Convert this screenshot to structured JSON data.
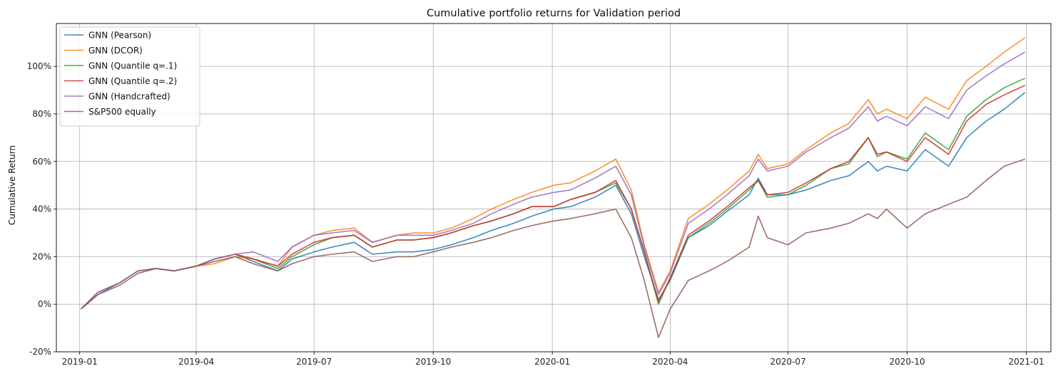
{
  "chart_data": {
    "type": "line",
    "title": "Cumulative portfolio returns for Validation period",
    "xlabel": "",
    "ylabel": "Cumulative Return",
    "x_range": [
      "2018-12-14",
      "2021-01-20"
    ],
    "ylim": [
      -0.2,
      1.18
    ],
    "x_ticks": [
      "2019-01-01",
      "2019-04-01",
      "2019-07-01",
      "2019-10-01",
      "2020-01-01",
      "2020-04-01",
      "2020-07-01",
      "2020-10-01",
      "2021-01-01"
    ],
    "x_tick_labels": [
      "2019-01",
      "2019-04",
      "2019-07",
      "2019-10",
      "2020-01",
      "2020-04",
      "2020-07",
      "2020-10",
      "2021-01"
    ],
    "y_ticks": [
      -0.2,
      0,
      0.2,
      0.4,
      0.6,
      0.8,
      1.0
    ],
    "y_tick_labels": [
      "-20%",
      "0%",
      "20%",
      "40%",
      "60%",
      "80%",
      "100%"
    ],
    "grid": true,
    "legend_position": "top-left",
    "x_dates": [
      "2019-01-02",
      "2019-01-15",
      "2019-02-01",
      "2019-02-15",
      "2019-03-01",
      "2019-03-15",
      "2019-04-01",
      "2019-04-15",
      "2019-05-01",
      "2019-05-15",
      "2019-06-03",
      "2019-06-14",
      "2019-07-01",
      "2019-07-15",
      "2019-08-01",
      "2019-08-15",
      "2019-09-03",
      "2019-09-16",
      "2019-10-01",
      "2019-10-15",
      "2019-11-01",
      "2019-11-15",
      "2019-12-02",
      "2019-12-16",
      "2020-01-02",
      "2020-01-15",
      "2020-02-03",
      "2020-02-19",
      "2020-03-02",
      "2020-03-12",
      "2020-03-23",
      "2020-04-01",
      "2020-04-15",
      "2020-05-01",
      "2020-05-15",
      "2020-06-01",
      "2020-06-08",
      "2020-06-15",
      "2020-07-01",
      "2020-07-15",
      "2020-08-03",
      "2020-08-17",
      "2020-09-01",
      "2020-09-08",
      "2020-09-15",
      "2020-10-01",
      "2020-10-15",
      "2020-11-02",
      "2020-11-16",
      "2020-12-01",
      "2020-12-15",
      "2020-12-31"
    ],
    "series": [
      {
        "name": "GNN (Pearson)",
        "color": "#1f77b4",
        "values": [
          -0.02,
          0.04,
          0.09,
          0.14,
          0.15,
          0.14,
          0.16,
          0.19,
          0.21,
          0.18,
          0.14,
          0.19,
          0.22,
          0.24,
          0.26,
          0.21,
          0.22,
          0.22,
          0.23,
          0.25,
          0.28,
          0.31,
          0.34,
          0.37,
          0.4,
          0.41,
          0.45,
          0.5,
          0.38,
          0.2,
          0.02,
          0.1,
          0.28,
          0.33,
          0.39,
          0.46,
          0.53,
          0.46,
          0.46,
          0.48,
          0.52,
          0.54,
          0.6,
          0.56,
          0.58,
          0.56,
          0.65,
          0.58,
          0.7,
          0.77,
          0.82,
          0.89
        ]
      },
      {
        "name": "GNN (DCOR)",
        "color": "#ff7f0e",
        "values": [
          -0.02,
          0.05,
          0.09,
          0.14,
          0.15,
          0.14,
          0.16,
          0.17,
          0.2,
          0.19,
          0.16,
          0.24,
          0.29,
          0.31,
          0.32,
          0.26,
          0.29,
          0.3,
          0.3,
          0.32,
          0.36,
          0.4,
          0.44,
          0.47,
          0.5,
          0.51,
          0.56,
          0.61,
          0.48,
          0.25,
          0.05,
          0.14,
          0.36,
          0.42,
          0.48,
          0.56,
          0.63,
          0.57,
          0.59,
          0.65,
          0.72,
          0.76,
          0.86,
          0.8,
          0.82,
          0.78,
          0.87,
          0.82,
          0.94,
          1.0,
          1.06,
          1.12
        ]
      },
      {
        "name": "GNN (Quantile q=.1)",
        "color": "#2ca02c",
        "values": [
          -0.02,
          0.05,
          0.09,
          0.14,
          0.15,
          0.14,
          0.16,
          0.19,
          0.21,
          0.19,
          0.15,
          0.2,
          0.25,
          0.28,
          0.29,
          0.24,
          0.27,
          0.27,
          0.28,
          0.3,
          0.33,
          0.35,
          0.38,
          0.41,
          0.41,
          0.44,
          0.47,
          0.51,
          0.4,
          0.22,
          0.0,
          0.11,
          0.28,
          0.34,
          0.4,
          0.48,
          0.52,
          0.45,
          0.46,
          0.5,
          0.57,
          0.59,
          0.7,
          0.62,
          0.64,
          0.61,
          0.72,
          0.65,
          0.79,
          0.86,
          0.91,
          0.95
        ]
      },
      {
        "name": "GNN (Quantile q=.2)",
        "color": "#d62728",
        "values": [
          -0.02,
          0.05,
          0.09,
          0.14,
          0.15,
          0.14,
          0.16,
          0.19,
          0.21,
          0.19,
          0.16,
          0.21,
          0.26,
          0.28,
          0.29,
          0.24,
          0.27,
          0.27,
          0.28,
          0.3,
          0.33,
          0.35,
          0.38,
          0.41,
          0.41,
          0.44,
          0.47,
          0.52,
          0.4,
          0.22,
          0.01,
          0.11,
          0.29,
          0.35,
          0.41,
          0.49,
          0.52,
          0.46,
          0.47,
          0.51,
          0.57,
          0.6,
          0.7,
          0.63,
          0.64,
          0.6,
          0.7,
          0.63,
          0.77,
          0.84,
          0.88,
          0.92
        ]
      },
      {
        "name": "GNN (Handcrafted)",
        "color": "#9467bd",
        "values": [
          -0.02,
          0.05,
          0.09,
          0.14,
          0.15,
          0.14,
          0.16,
          0.19,
          0.21,
          0.22,
          0.18,
          0.24,
          0.29,
          0.3,
          0.31,
          0.26,
          0.29,
          0.29,
          0.29,
          0.31,
          0.34,
          0.38,
          0.42,
          0.45,
          0.47,
          0.48,
          0.53,
          0.58,
          0.46,
          0.24,
          0.04,
          0.13,
          0.34,
          0.4,
          0.46,
          0.54,
          0.61,
          0.56,
          0.58,
          0.64,
          0.7,
          0.74,
          0.83,
          0.77,
          0.79,
          0.75,
          0.83,
          0.78,
          0.9,
          0.96,
          1.01,
          1.06
        ]
      },
      {
        "name": "S&P500 equally",
        "color": "#8c564b",
        "values": [
          -0.02,
          0.04,
          0.08,
          0.13,
          0.15,
          0.14,
          0.16,
          0.18,
          0.2,
          0.17,
          0.14,
          0.17,
          0.2,
          0.21,
          0.22,
          0.18,
          0.2,
          0.2,
          0.22,
          0.24,
          0.26,
          0.28,
          0.31,
          0.33,
          0.35,
          0.36,
          0.38,
          0.4,
          0.28,
          0.1,
          -0.14,
          -0.02,
          0.1,
          0.14,
          0.18,
          0.24,
          0.37,
          0.28,
          0.25,
          0.3,
          0.32,
          0.34,
          0.38,
          0.36,
          0.4,
          0.32,
          0.38,
          0.42,
          0.45,
          0.52,
          0.58,
          0.61
        ]
      }
    ]
  }
}
